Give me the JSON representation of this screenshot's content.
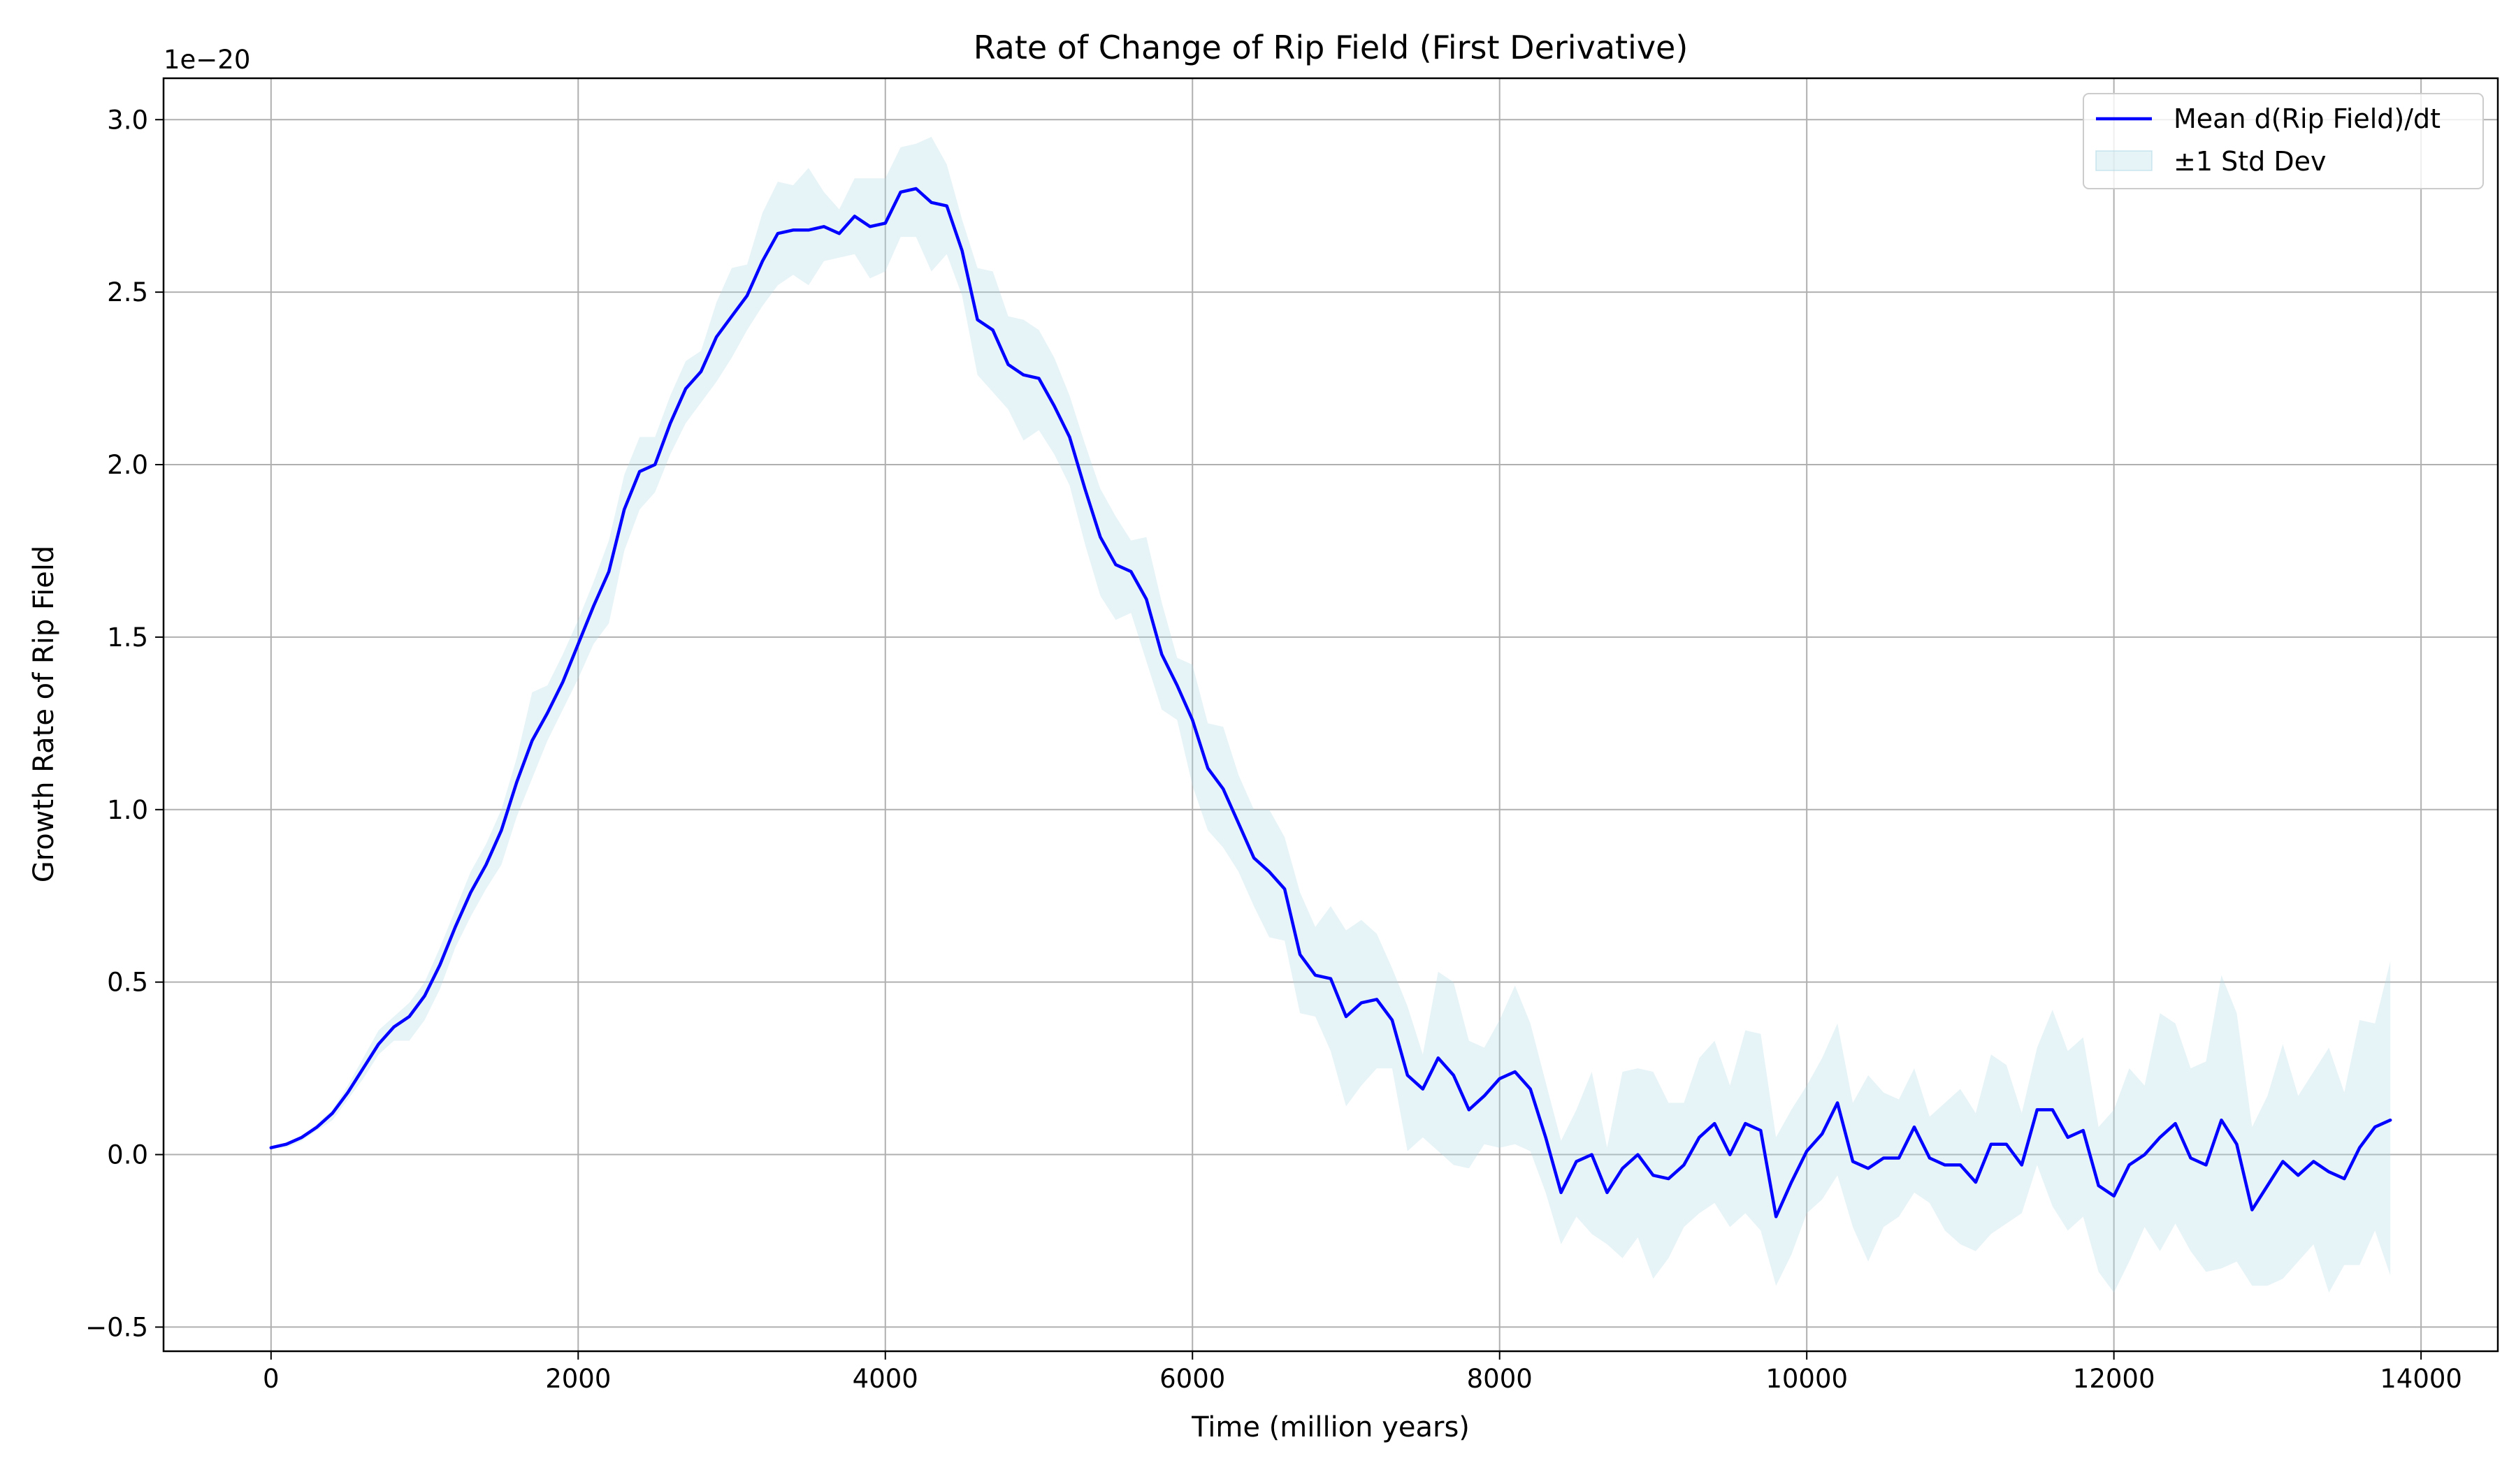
{
  "chart_data": {
    "type": "line",
    "title": "Rate of Change of Rip Field (First Derivative)",
    "xlabel": "Time (million years)",
    "ylabel": "Growth Rate of Rip Field",
    "y_offset_label": "1e−20",
    "y_scale_factor": 1e-20,
    "xlim": [
      -700,
      14500
    ],
    "ylim": [
      -0.57,
      3.12
    ],
    "grid": true,
    "legend_position": "upper right",
    "x_ticks": [
      0,
      2000,
      4000,
      6000,
      8000,
      10000,
      12000,
      14000
    ],
    "x_tick_labels": [
      "0",
      "2000",
      "4000",
      "6000",
      "8000",
      "10000",
      "12000",
      "14000"
    ],
    "y_ticks": [
      -0.5,
      0.0,
      0.5,
      1.0,
      1.5,
      2.0,
      2.5,
      3.0
    ],
    "y_tick_labels": [
      "−0.5",
      "0.0",
      "0.5",
      "1.0",
      "1.5",
      "2.0",
      "2.5",
      "3.0"
    ],
    "colors": {
      "mean_line": "#0000ff",
      "std_band": "#add8e6",
      "grid": "#b0b0b0",
      "axes": "#000000"
    },
    "series": [
      {
        "name": "Mean d(Rip Field)/dt",
        "kind": "line",
        "x": [
          0,
          100,
          200,
          300,
          400,
          500,
          600,
          700,
          800,
          900,
          1000,
          1100,
          1200,
          1300,
          1400,
          1500,
          1600,
          1700,
          1800,
          1900,
          2000,
          2100,
          2200,
          2300,
          2400,
          2500,
          2600,
          2700,
          2800,
          2900,
          3000,
          3100,
          3200,
          3300,
          3400,
          3500,
          3600,
          3700,
          3800,
          3900,
          4000,
          4100,
          4200,
          4300,
          4400,
          4500,
          4600,
          4700,
          4800,
          4900,
          5000,
          5100,
          5200,
          5300,
          5400,
          5500,
          5600,
          5700,
          5800,
          5900,
          6000,
          6100,
          6200,
          6300,
          6400,
          6500,
          6600,
          6700,
          6800,
          6900,
          7000,
          7100,
          7200,
          7300,
          7400,
          7500,
          7600,
          7700,
          7800,
          7900,
          8000,
          8100,
          8200,
          8300,
          8400,
          8500,
          8600,
          8700,
          8800,
          8900,
          9000,
          9100,
          9200,
          9300,
          9400,
          9500,
          9600,
          9700,
          9800,
          9900,
          10000,
          10100,
          10200,
          10300,
          10400,
          10500,
          10600,
          10700,
          10800,
          10900,
          11000,
          11100,
          11200,
          11300,
          11400,
          11500,
          11600,
          11700,
          11800,
          11900,
          12000,
          12100,
          12200,
          12300,
          12400,
          12500,
          12600,
          12700,
          12800,
          12900,
          13000,
          13100,
          13200,
          13300,
          13400,
          13500,
          13600,
          13700,
          13800
        ],
        "y": [
          0.02,
          0.03,
          0.05,
          0.08,
          0.12,
          0.18,
          0.25,
          0.32,
          0.37,
          0.4,
          0.46,
          0.55,
          0.66,
          0.76,
          0.84,
          0.94,
          1.08,
          1.2,
          1.28,
          1.37,
          1.48,
          1.59,
          1.69,
          1.87,
          1.98,
          2.0,
          2.12,
          2.22,
          2.27,
          2.37,
          2.43,
          2.49,
          2.59,
          2.67,
          2.68,
          2.68,
          2.69,
          2.67,
          2.72,
          2.69,
          2.7,
          2.79,
          2.8,
          2.76,
          2.75,
          2.62,
          2.42,
          2.39,
          2.29,
          2.26,
          2.25,
          2.17,
          2.08,
          1.93,
          1.79,
          1.71,
          1.69,
          1.61,
          1.45,
          1.36,
          1.26,
          1.12,
          1.06,
          0.96,
          0.86,
          0.82,
          0.77,
          0.58,
          0.52,
          0.51,
          0.4,
          0.44,
          0.45,
          0.39,
          0.23,
          0.19,
          0.28,
          0.23,
          0.13,
          0.17,
          0.22,
          0.24,
          0.19,
          0.05,
          -0.11,
          -0.02,
          0.0,
          -0.11,
          -0.04,
          0.0,
          -0.06,
          -0.07,
          -0.03,
          0.05,
          0.09,
          0.0,
          0.09,
          0.07,
          -0.18,
          -0.08,
          0.01,
          0.06,
          0.15,
          -0.02,
          -0.04,
          -0.01,
          -0.01,
          0.08,
          -0.01,
          -0.03,
          -0.03,
          -0.08,
          0.03,
          0.03,
          -0.03,
          0.13,
          0.13,
          0.05,
          0.07,
          -0.09,
          -0.12,
          -0.03,
          0.0,
          0.05,
          0.09,
          -0.01,
          -0.03,
          0.1,
          0.03,
          -0.16,
          -0.09,
          -0.02,
          -0.06,
          -0.02,
          -0.05,
          -0.07,
          0.02,
          0.08,
          0.1
        ]
      },
      {
        "name": "±1 Std Dev",
        "kind": "band",
        "x": [
          0,
          100,
          200,
          300,
          400,
          500,
          600,
          700,
          800,
          900,
          1000,
          1100,
          1200,
          1300,
          1400,
          1500,
          1600,
          1700,
          1800,
          1900,
          2000,
          2100,
          2200,
          2300,
          2400,
          2500,
          2600,
          2700,
          2800,
          2900,
          3000,
          3100,
          3200,
          3300,
          3400,
          3500,
          3600,
          3700,
          3800,
          3900,
          4000,
          4100,
          4200,
          4300,
          4400,
          4500,
          4600,
          4700,
          4800,
          4900,
          5000,
          5100,
          5200,
          5300,
          5400,
          5500,
          5600,
          5700,
          5800,
          5900,
          6000,
          6100,
          6200,
          6300,
          6400,
          6500,
          6600,
          6700,
          6800,
          6900,
          7000,
          7100,
          7200,
          7300,
          7400,
          7500,
          7600,
          7700,
          7800,
          7900,
          8000,
          8100,
          8200,
          8300,
          8400,
          8500,
          8600,
          8700,
          8800,
          8900,
          9000,
          9100,
          9200,
          9300,
          9400,
          9500,
          9600,
          9700,
          9800,
          9900,
          10000,
          10100,
          10200,
          10300,
          10400,
          10500,
          10600,
          10700,
          10800,
          10900,
          11000,
          11100,
          11200,
          11300,
          11400,
          11500,
          11600,
          11700,
          11800,
          11900,
          12000,
          12100,
          12200,
          12300,
          12400,
          12500,
          12600,
          12700,
          12800,
          12900,
          13000,
          13100,
          13200,
          13300,
          13400,
          13500,
          13600,
          13700,
          13800
        ],
        "upper": [
          0.02,
          0.03,
          0.05,
          0.09,
          0.13,
          0.2,
          0.28,
          0.36,
          0.4,
          0.44,
          0.5,
          0.6,
          0.71,
          0.82,
          0.9,
          1.0,
          1.15,
          1.34,
          1.36,
          1.45,
          1.55,
          1.66,
          1.78,
          1.97,
          2.08,
          2.08,
          2.2,
          2.3,
          2.33,
          2.47,
          2.57,
          2.58,
          2.73,
          2.82,
          2.81,
          2.86,
          2.79,
          2.74,
          2.83,
          2.83,
          2.83,
          2.92,
          2.93,
          2.95,
          2.87,
          2.71,
          2.57,
          2.56,
          2.43,
          2.42,
          2.39,
          2.31,
          2.2,
          2.06,
          1.93,
          1.85,
          1.78,
          1.79,
          1.6,
          1.44,
          1.42,
          1.25,
          1.24,
          1.1,
          1.0,
          1.0,
          0.92,
          0.76,
          0.66,
          0.72,
          0.65,
          0.68,
          0.64,
          0.54,
          0.43,
          0.29,
          0.53,
          0.5,
          0.33,
          0.31,
          0.39,
          0.49,
          0.38,
          0.21,
          0.04,
          0.13,
          0.24,
          0.02,
          0.24,
          0.25,
          0.24,
          0.15,
          0.15,
          0.28,
          0.33,
          0.2,
          0.36,
          0.35,
          0.05,
          0.13,
          0.2,
          0.28,
          0.38,
          0.15,
          0.23,
          0.18,
          0.16,
          0.25,
          0.11,
          0.15,
          0.19,
          0.12,
          0.29,
          0.26,
          0.12,
          0.31,
          0.42,
          0.3,
          0.34,
          0.08,
          0.13,
          0.25,
          0.2,
          0.41,
          0.38,
          0.25,
          0.27,
          0.52,
          0.41,
          0.08,
          0.17,
          0.32,
          0.17,
          0.24,
          0.31,
          0.18,
          0.39,
          0.38,
          0.56
        ],
        "lower": [
          0.02,
          0.02,
          0.04,
          0.07,
          0.1,
          0.16,
          0.22,
          0.29,
          0.33,
          0.33,
          0.39,
          0.48,
          0.6,
          0.69,
          0.77,
          0.84,
          0.98,
          1.09,
          1.2,
          1.29,
          1.38,
          1.48,
          1.54,
          1.75,
          1.87,
          1.92,
          2.03,
          2.12,
          2.18,
          2.24,
          2.31,
          2.39,
          2.46,
          2.52,
          2.55,
          2.52,
          2.59,
          2.6,
          2.61,
          2.54,
          2.56,
          2.66,
          2.66,
          2.56,
          2.61,
          2.49,
          2.26,
          2.21,
          2.16,
          2.07,
          2.1,
          2.03,
          1.94,
          1.77,
          1.62,
          1.55,
          1.57,
          1.43,
          1.29,
          1.26,
          1.07,
          0.94,
          0.89,
          0.82,
          0.72,
          0.63,
          0.62,
          0.41,
          0.4,
          0.3,
          0.14,
          0.2,
          0.25,
          0.25,
          0.01,
          0.05,
          0.01,
          -0.03,
          -0.04,
          0.03,
          0.02,
          0.03,
          0.01,
          -0.11,
          -0.26,
          -0.18,
          -0.23,
          -0.26,
          -0.3,
          -0.24,
          -0.36,
          -0.3,
          -0.21,
          -0.17,
          -0.14,
          -0.21,
          -0.17,
          -0.22,
          -0.38,
          -0.29,
          -0.17,
          -0.13,
          -0.06,
          -0.21,
          -0.31,
          -0.21,
          -0.18,
          -0.11,
          -0.14,
          -0.22,
          -0.26,
          -0.28,
          -0.23,
          -0.2,
          -0.17,
          -0.03,
          -0.15,
          -0.22,
          -0.18,
          -0.34,
          -0.4,
          -0.31,
          -0.21,
          -0.28,
          -0.2,
          -0.28,
          -0.34,
          -0.33,
          -0.31,
          -0.38,
          -0.38,
          -0.36,
          -0.31,
          -0.26,
          -0.4,
          -0.32,
          -0.32,
          -0.22,
          -0.35
        ]
      }
    ]
  }
}
